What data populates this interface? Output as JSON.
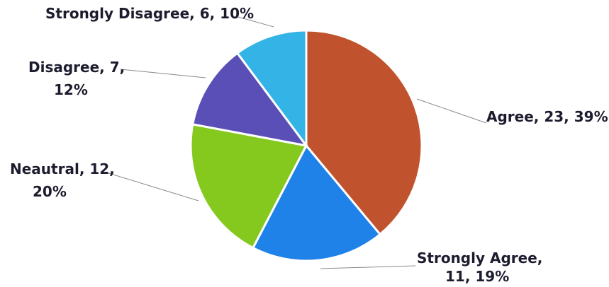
{
  "chart_data": {
    "type": "pie",
    "title": "",
    "start_angle_deg": 0,
    "direction": "clockwise",
    "legend": "none",
    "slices": [
      {
        "category": "Agree",
        "value": 23,
        "percent": "39%",
        "color": "#c0522d",
        "label_lines": [
          "Agree, 23, 39%"
        ]
      },
      {
        "category": "Strongly Agree",
        "value": 11,
        "percent": "19%",
        "color": "#1f82e8",
        "label_lines": [
          "Strongly Agree,",
          "11, 19%"
        ]
      },
      {
        "category": "Neautral",
        "value": 12,
        "percent": "20%",
        "color": "#86c91e",
        "label_lines": [
          "Neautral, 12,",
          "20%"
        ]
      },
      {
        "category": "Disagree",
        "value": 7,
        "percent": "12%",
        "color": "#5a4fb6",
        "label_lines": [
          "Disagree, 7,",
          "12%"
        ]
      },
      {
        "category": "Strongly Disagree",
        "value": 6,
        "percent": "10%",
        "color": "#34b3e6",
        "label_lines": [
          "Strongly Disagree, 6, 10%"
        ]
      }
    ]
  }
}
